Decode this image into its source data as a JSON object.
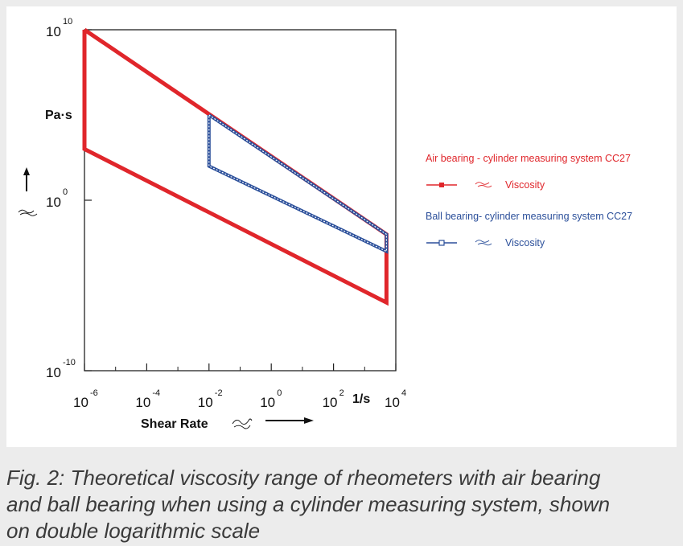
{
  "chart_data": {
    "type": "line",
    "title": "",
    "xlabel": "Shear Rate",
    "x_unit": "1/s",
    "ylabel": "",
    "y_unit": "Pa·s",
    "x_scale": "log",
    "y_scale": "log",
    "xlim": [
      1e-06,
      10000.0
    ],
    "ylim": [
      1e-10,
      10000000000.0
    ],
    "x_ticks": [
      {
        "base": "10",
        "exp": "-6",
        "value": 1e-06
      },
      {
        "base": "10",
        "exp": "-4",
        "value": 0.0001
      },
      {
        "base": "10",
        "exp": "-2",
        "value": 0.01
      },
      {
        "base": "10",
        "exp": "0",
        "value": 1
      },
      {
        "base": "10",
        "exp": "2",
        "value": 100.0
      },
      {
        "base": "10",
        "exp": "4",
        "value": 10000.0
      }
    ],
    "y_ticks": [
      {
        "base": "10",
        "exp": "10",
        "value": 10000000000.0
      },
      {
        "base": "10",
        "exp": "0",
        "value": 1
      },
      {
        "base": "10",
        "exp": "-10",
        "value": 1e-10
      }
    ],
    "grid": false,
    "legend_position": "right",
    "series": [
      {
        "name": "Air bearing  - cylinder measuring system CC27",
        "item_label": "Viscosity",
        "color": "#e0262b",
        "marker": "filled-square",
        "x": [
          1e-06,
          5000,
          5000,
          1e-06,
          1e-06
        ],
        "y": [
          10000000000.0,
          0.01,
          1e-06,
          1000.0,
          10000000000.0
        ]
      },
      {
        "name": "Ball bearing- cylinder measuring system CC27",
        "item_label": "Viscosity",
        "color": "#2b4f9a",
        "marker": "open-square",
        "x": [
          0.01,
          5000,
          5000,
          0.01,
          0.01
        ],
        "y": [
          100000.0,
          0.01,
          0.001,
          100.0,
          100000.0
        ]
      }
    ]
  },
  "caption": "Fig. 2: Theoretical viscosity range of rheometers with air bearing and ball bearing when using a cylinder measuring system, shown on double logarithmic scale"
}
